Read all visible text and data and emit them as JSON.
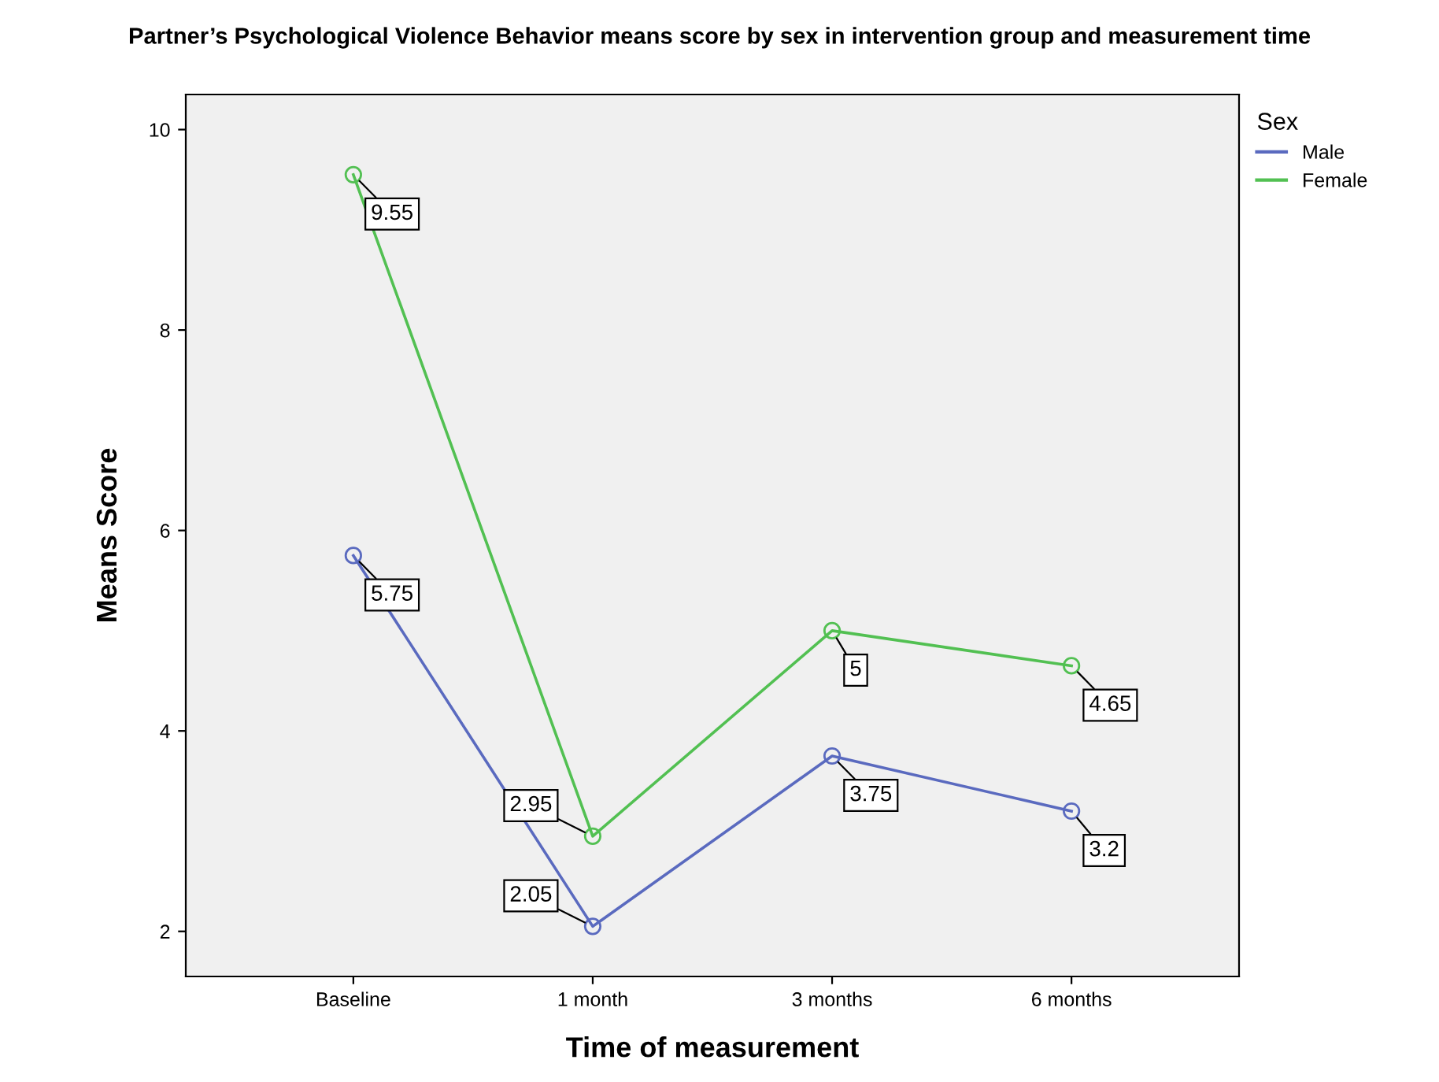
{
  "chart_data": {
    "type": "line",
    "title": "Partner’s Psychological Violence Behavior means score by sex in intervention group and measurement time",
    "xlabel": "Time of measurement",
    "ylabel": "Means Score",
    "legend_title": "Sex",
    "categories": [
      "Baseline",
      "1 month",
      "3 months",
      "6 months"
    ],
    "series": [
      {
        "name": "Male",
        "color": "#5a6abf",
        "values": [
          5.75,
          2.05,
          3.75,
          3.2
        ]
      },
      {
        "name": "Female",
        "color": "#52c052",
        "values": [
          9.55,
          2.95,
          5,
          4.65
        ]
      }
    ],
    "ylim": [
      1.55,
      10.35
    ],
    "yticks": [
      2,
      4,
      6,
      8,
      10
    ],
    "grid": false,
    "legend": "top right",
    "marker": "circle",
    "line_style": "solid",
    "data_labels": true
  }
}
